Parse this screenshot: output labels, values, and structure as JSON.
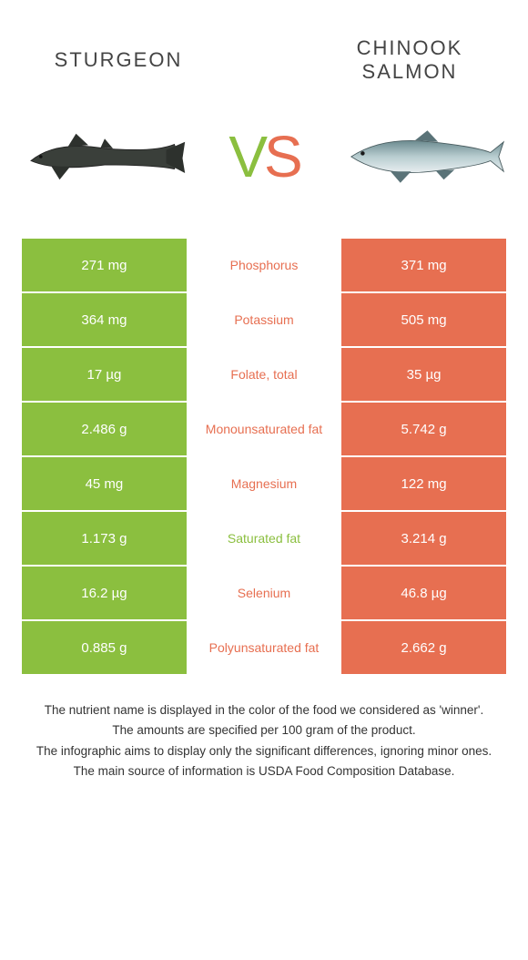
{
  "colors": {
    "left": "#8bbf3f",
    "right": "#e76f51",
    "bg": "#ffffff",
    "text": "#333333"
  },
  "titles": {
    "left": "STURGEON",
    "right": "CHINOOK SALMON",
    "vs_v": "V",
    "vs_s": "S"
  },
  "rows": [
    {
      "left": "271 mg",
      "label": "Phosphorus",
      "right": "371 mg",
      "winner": "right"
    },
    {
      "left": "364 mg",
      "label": "Potassium",
      "right": "505 mg",
      "winner": "right"
    },
    {
      "left": "17 µg",
      "label": "Folate, total",
      "right": "35 µg",
      "winner": "right"
    },
    {
      "left": "2.486 g",
      "label": "Monounsaturated fat",
      "right": "5.742 g",
      "winner": "right"
    },
    {
      "left": "45 mg",
      "label": "Magnesium",
      "right": "122 mg",
      "winner": "right"
    },
    {
      "left": "1.173 g",
      "label": "Saturated fat",
      "right": "3.214 g",
      "winner": "left"
    },
    {
      "left": "16.2 µg",
      "label": "Selenium",
      "right": "46.8 µg",
      "winner": "right"
    },
    {
      "left": "0.885 g",
      "label": "Polyunsaturated fat",
      "right": "2.662 g",
      "winner": "right"
    }
  ],
  "footer": {
    "line1": "The nutrient name is displayed in the color of the food we considered as 'winner'.",
    "line2": "The amounts are specified per 100 gram of the product.",
    "line3": "The infographic aims to display only the significant differences, ignoring minor ones.",
    "line4": "The main source of information is USDA Food Composition Database."
  }
}
